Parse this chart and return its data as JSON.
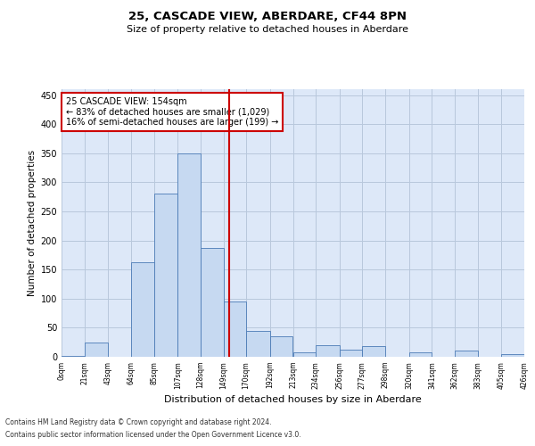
{
  "title1": "25, CASCADE VIEW, ABERDARE, CF44 8PN",
  "title2": "Size of property relative to detached houses in Aberdare",
  "xlabel": "Distribution of detached houses by size in Aberdare",
  "ylabel": "Number of detached properties",
  "property_size": 154,
  "pct_smaller": 83,
  "n_smaller": 1029,
  "pct_larger": 16,
  "n_larger": 199,
  "vline_x": 154,
  "bin_edges": [
    0,
    21,
    43,
    64,
    85,
    107,
    128,
    149,
    170,
    192,
    213,
    234,
    256,
    277,
    298,
    320,
    341,
    362,
    383,
    405,
    426
  ],
  "bar_heights": [
    2,
    25,
    0,
    163,
    280,
    350,
    187,
    95,
    45,
    35,
    8,
    20,
    12,
    18,
    0,
    8,
    0,
    10,
    0,
    5
  ],
  "bar_color": "#c6d9f1",
  "bar_edge_color": "#4a7ab5",
  "vline_color": "#cc0000",
  "grid_color": "#b8c8dc",
  "background_color": "#dde8f8",
  "annotation_box_color": "#cc0000",
  "footer1": "Contains HM Land Registry data © Crown copyright and database right 2024.",
  "footer2": "Contains public sector information licensed under the Open Government Licence v3.0.",
  "ylim": [
    0,
    460
  ],
  "yticks": [
    0,
    50,
    100,
    150,
    200,
    250,
    300,
    350,
    400,
    450
  ],
  "tick_labels": [
    "0sqm",
    "21sqm",
    "43sqm",
    "64sqm",
    "85sqm",
    "107sqm",
    "128sqm",
    "149sqm",
    "170sqm",
    "192sqm",
    "213sqm",
    "234sqm",
    "256sqm",
    "277sqm",
    "298sqm",
    "320sqm",
    "341sqm",
    "362sqm",
    "383sqm",
    "405sqm",
    "426sqm"
  ]
}
